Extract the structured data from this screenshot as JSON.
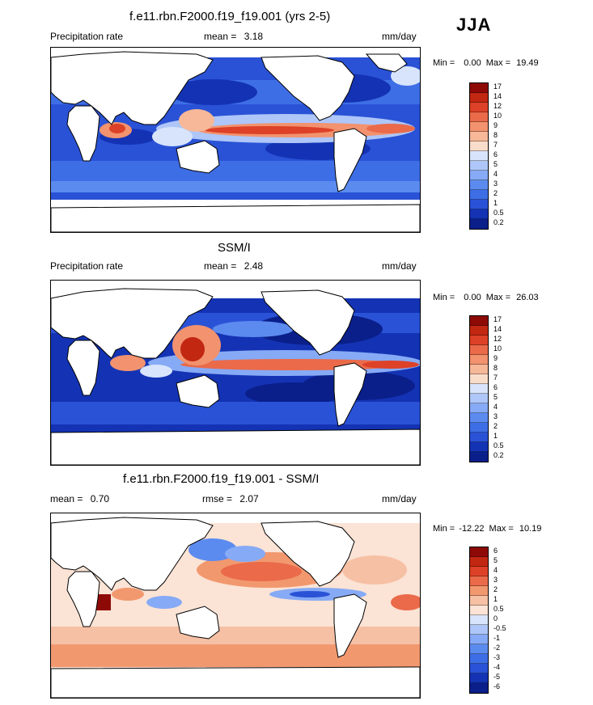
{
  "season": "JJA",
  "units": "mm/day",
  "colors": {
    "precip": [
      "#0a1f8a",
      "#1433b4",
      "#2a52d6",
      "#3e6ee6",
      "#5c8bf0",
      "#86aaf5",
      "#aec6f8",
      "#d7e4fb",
      "#f9ddcb",
      "#f6b898",
      "#f2926e",
      "#ea6a4a",
      "#dd4127",
      "#c22712",
      "#8e0a06"
    ],
    "diff": [
      "#0a1f8a",
      "#1433b4",
      "#2a52d6",
      "#3e6ee6",
      "#5c8bf0",
      "#86aaf5",
      "#aec6f8",
      "#d7e4fb",
      "#fbe3d5",
      "#f6c0a4",
      "#f2986f",
      "#ea6a4a",
      "#dd4127",
      "#c22712",
      "#8e0a06"
    ]
  },
  "panel1": {
    "title": "f.e11.rbn.F2000.f19_f19.001 (yrs 2-5)",
    "variable": "Precipitation rate",
    "stat_label": "mean =",
    "stat_value": "3.18",
    "units": "mm/day",
    "min_label": "Min =",
    "min_value": "0.00",
    "max_label": "Max =",
    "max_value": "19.49",
    "colorbar_labels": [
      "17",
      "14",
      "12",
      "10",
      "9",
      "8",
      "7",
      "6",
      "5",
      "4",
      "3",
      "2",
      "1",
      "0.5",
      "0.2"
    ]
  },
  "panel2": {
    "title": "SSM/I",
    "variable": "Precipitation rate",
    "stat_label": "mean =",
    "stat_value": "2.48",
    "units": "mm/day",
    "min_label": "Min =",
    "min_value": "0.00",
    "max_label": "Max =",
    "max_value": "26.03",
    "colorbar_labels": [
      "17",
      "14",
      "12",
      "10",
      "9",
      "8",
      "7",
      "6",
      "5",
      "4",
      "3",
      "2",
      "1",
      "0.5",
      "0.2"
    ]
  },
  "panel3": {
    "title": "f.e11.rbn.F2000.f19_f19.001 - SSM/I",
    "mean_label": "mean =",
    "mean_value": "0.70",
    "rmse_label": "rmse =",
    "rmse_value": "2.07",
    "units": "mm/day",
    "min_label": "Min =",
    "min_value": "-12.22",
    "max_label": "Max =",
    "max_value": "10.19",
    "colorbar_labels": [
      "6",
      "5",
      "4",
      "3",
      "2",
      "1",
      "0.5",
      "0",
      "-0.5",
      "-1",
      "-2",
      "-3",
      "-4",
      "-5",
      "-6"
    ]
  }
}
